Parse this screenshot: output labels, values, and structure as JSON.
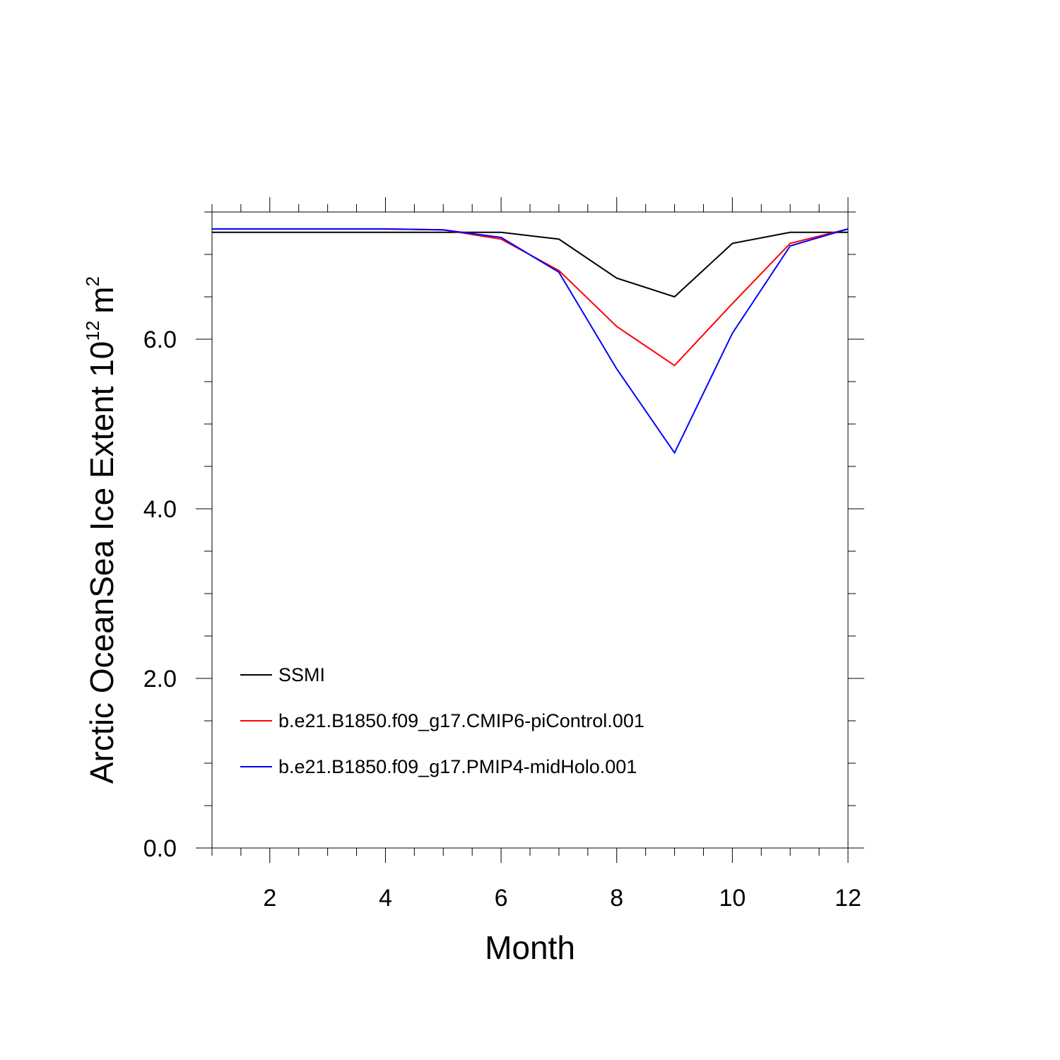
{
  "chart_data": {
    "type": "line",
    "title": "",
    "xlabel": "Month",
    "ylabel": {
      "text": "Arctic OceanSea Ice Extent 10",
      "exponent": "12",
      "unit": "m",
      "unit_exponent": "2"
    },
    "xlim": [
      1,
      12
    ],
    "ylim": [
      0,
      7.5
    ],
    "xticks": [
      2,
      4,
      6,
      8,
      10,
      12
    ],
    "xtick_labels": [
      "2",
      "4",
      "6",
      "8",
      "10",
      "12"
    ],
    "yticks": [
      0,
      2,
      4,
      6
    ],
    "ytick_labels": [
      "0.0",
      "2.0",
      "4.0",
      "6.0"
    ],
    "x": [
      1,
      2,
      3,
      4,
      5,
      6,
      7,
      8,
      9,
      10,
      11,
      12
    ],
    "series": [
      {
        "name": "SSMI",
        "color": "#000000",
        "values": [
          7.26,
          7.26,
          7.26,
          7.26,
          7.26,
          7.26,
          7.18,
          6.72,
          6.5,
          7.13,
          7.26,
          7.26
        ]
      },
      {
        "name": "b.e21.B1850.f09_g17.CMIP6-piControl.001",
        "color": "#ff0000",
        "values": [
          7.3,
          7.3,
          7.3,
          7.3,
          7.29,
          7.18,
          6.81,
          6.15,
          5.69,
          6.42,
          7.13,
          7.3
        ]
      },
      {
        "name": "b.e21.B1850.f09_g17.PMIP4-midHolo.001",
        "color": "#0000ff",
        "values": [
          7.3,
          7.3,
          7.3,
          7.3,
          7.29,
          7.2,
          6.79,
          5.65,
          4.66,
          6.07,
          7.1,
          7.3
        ]
      }
    ],
    "legend_position": "lower-left",
    "grid": false
  }
}
